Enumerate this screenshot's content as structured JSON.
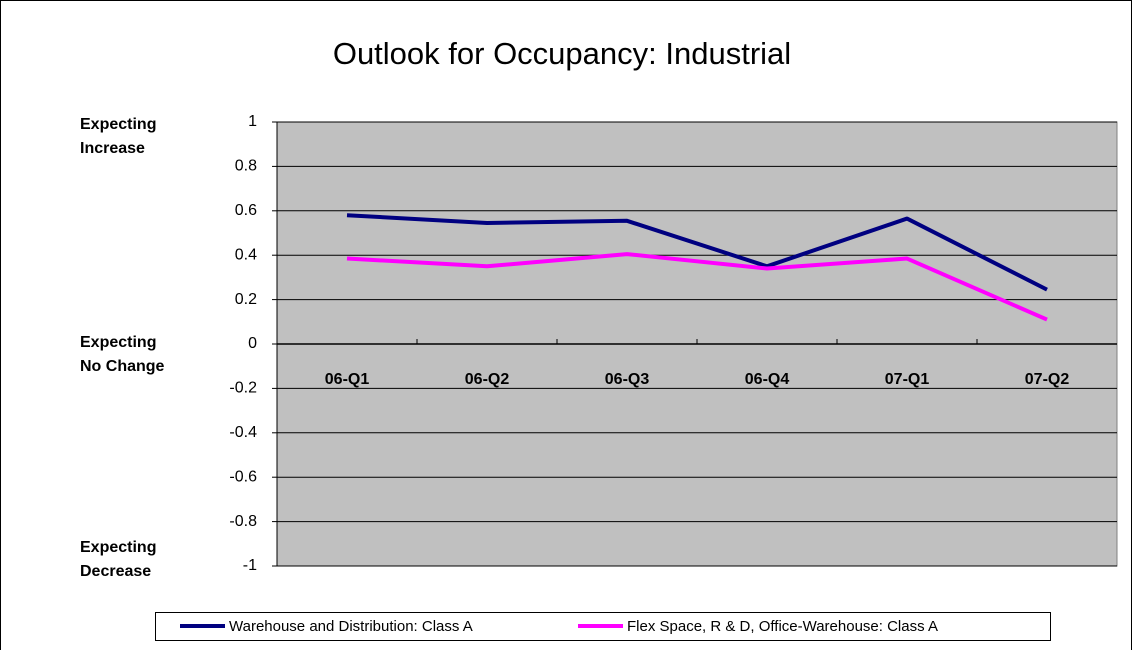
{
  "chart_data": {
    "type": "line",
    "title": "Outlook for Occupancy:  Industrial",
    "annotations": [
      [
        "Expecting",
        "Increase"
      ],
      [
        "Expecting",
        "No Change"
      ],
      [
        "Expecting",
        "Decrease"
      ]
    ],
    "categories": [
      "06-Q1",
      "06-Q2",
      "06-Q3",
      "06-Q4",
      "07-Q1",
      "07-Q2"
    ],
    "series": [
      {
        "name": "Warehouse and Distribution: Class A",
        "color": "#000080",
        "values": [
          0.58,
          0.545,
          0.555,
          0.35,
          0.565,
          0.245
        ]
      },
      {
        "name": "Flex Space, R & D, Office-Warehouse: Class A",
        "color": "#ff00ff",
        "values": [
          0.385,
          0.35,
          0.405,
          0.34,
          0.385,
          0.11
        ]
      }
    ],
    "ylim": [
      -1,
      1
    ],
    "yticks": [
      -1,
      -0.8,
      -0.6,
      -0.4,
      -0.2,
      0,
      0.2,
      0.4,
      0.6,
      0.8,
      1
    ],
    "grid": true,
    "plot_background": "#c0c0c0",
    "legend": "bottom"
  }
}
